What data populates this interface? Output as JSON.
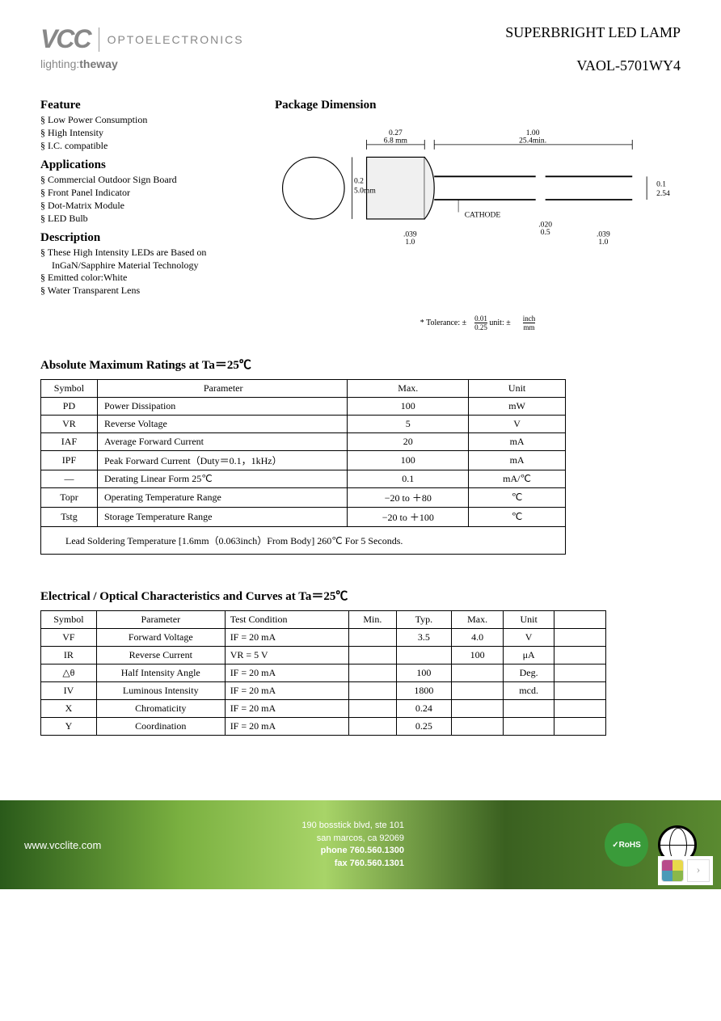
{
  "logo": {
    "brand": "VCC",
    "sub": "OPTOELECTRONICS",
    "tag1": "lighting:",
    "tag2": "theway"
  },
  "title": {
    "line1": "SUPERBRIGHT LED LAMP",
    "line2": "VAOL-5701WY4"
  },
  "feature": {
    "heading": "Feature",
    "items": [
      "Low Power Consumption",
      "High Intensity",
      "I.C. compatible"
    ]
  },
  "applications": {
    "heading": "Applications",
    "items": [
      "Commercial Outdoor Sign Board",
      "Front Panel Indicator",
      "Dot-Matrix Module",
      "LED Bulb"
    ]
  },
  "description": {
    "heading": "Description",
    "items": [
      "These High Intensity LEDs are Based on",
      "InGaN/Sapphire  Material Technology",
      "Emitted color:White",
      "Water Transparent Lens"
    ],
    "indentIdx": 1
  },
  "package": {
    "heading": "Package Dimension",
    "dims": {
      "d1": "0.27",
      "d1mm": "6.8 mm",
      "d2": "1.00",
      "d2mm": "25.4min.",
      "dia": "0.2",
      "diamm": "5.0mm",
      "cath": "CATHODE",
      "l1": ".039",
      "l1mm": "1.0",
      "l2": ".020",
      "l2mm": "0.5",
      "l3": ".039",
      "l3mm": "1.0",
      "p": "0.1",
      "pmm": "2.54"
    },
    "tolerance": "* Tolerance:  ±",
    "tol1n": "0.01",
    "tol1d": "0.25",
    "tolunit": "unit:  ±",
    "tol2n": "inch",
    "tol2d": "mm"
  },
  "table1": {
    "heading": "Absolute Maximum Ratings at Ta＝25℃",
    "headers": [
      "Symbol",
      "Parameter",
      "Max.",
      "Unit"
    ],
    "rows": [
      [
        "PD",
        "Power Dissipation",
        "100",
        "mW"
      ],
      [
        "VR",
        "Reverse Voltage",
        "5",
        "V"
      ],
      [
        "IAF",
        "Average Forward Current",
        "20",
        "mA"
      ],
      [
        "IPF",
        "Peak Forward Current（Duty＝0.1，1kHz）",
        "100",
        "mA"
      ],
      [
        "—",
        "Derating Linear Form 25℃",
        "0.1",
        "mA/℃"
      ],
      [
        "Topr",
        "Operating Temperature Range",
        "−20 to ＋80",
        "℃"
      ],
      [
        "Tstg",
        "Storage Temperature Range",
        "−20 to ＋100",
        "℃"
      ]
    ],
    "note": "Lead Soldering Temperature [1.6mm（0.063inch）From Body] 260℃ For 5 Seconds."
  },
  "table2": {
    "heading": "Electrical / Optical Characteristics and Curves at Ta＝25℃",
    "headers": [
      "Symbol",
      "Parameter",
      "Test Condition",
      "Min.",
      "Typ.",
      "Max.",
      "Unit",
      ""
    ],
    "rows": [
      [
        "VF",
        "Forward Voltage",
        "IF =  20  mA",
        "",
        "3.5",
        "4.0",
        "V",
        ""
      ],
      [
        "IR",
        "Reverse Current",
        "VR =  5         V",
        "",
        "",
        "100",
        "μA",
        ""
      ],
      [
        "△θ",
        "Half Intensity Angle",
        "IF =  20  mA",
        "",
        "100",
        "",
        "Deg.",
        ""
      ],
      [
        "IV",
        "Luminous Intensity",
        "IF =  20  mA",
        "",
        "1800",
        "",
        "mcd.",
        ""
      ],
      [
        "X",
        "Chromaticity",
        "IF =  20  mA",
        "",
        "0.24",
        "",
        "",
        ""
      ],
      [
        "Y",
        "Coordination",
        "IF =  20  mA",
        "",
        "0.25",
        "",
        "",
        ""
      ]
    ]
  },
  "footer": {
    "url": "www.vcclite.com",
    "addr1": "190 bosstick blvd, ste 101",
    "addr2": "san marcos, ca 92069",
    "phone": "phone 760.560.1300",
    "fax": "fax 760.560.1301",
    "rohs": "RoHS"
  }
}
